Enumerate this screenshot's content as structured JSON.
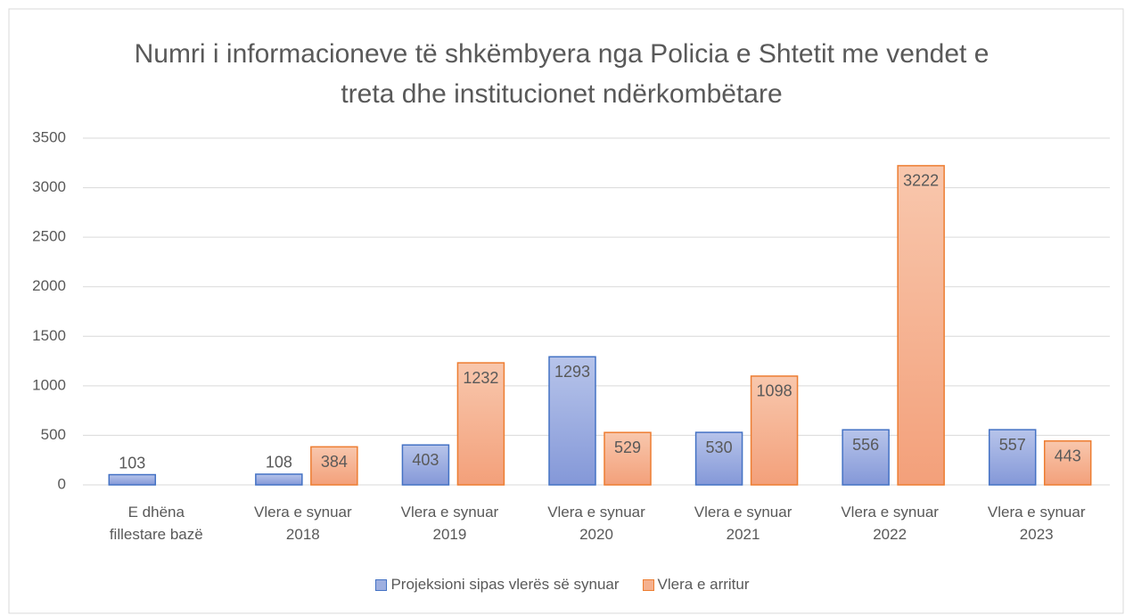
{
  "chart_data": {
    "type": "bar",
    "title": "Numri i informacioneve të shkëmbyera nga Policia e Shtetit me vendet e treta dhe institucionet ndërkombëtare",
    "categories": [
      "E dhëna fillestare bazë",
      "Vlera e synuar 2018",
      "Vlera e synuar 2019",
      "Vlera e synuar 2020",
      "Vlera e synuar 2021",
      "Vlera e synuar 2022",
      "Vlera e synuar 2023"
    ],
    "series": [
      {
        "name": "Projeksioni sipas vlerës së synuar",
        "color": "#4472c4",
        "values": [
          103,
          108,
          403,
          1293,
          530,
          556,
          557
        ]
      },
      {
        "name": "Vlera e arritur",
        "color": "#ed7d31",
        "values": [
          null,
          384,
          1232,
          529,
          1098,
          3222,
          443
        ]
      }
    ],
    "ylim": [
      0,
      3500
    ],
    "yticks": [
      0,
      500,
      1000,
      1500,
      2000,
      2500,
      3000,
      3500
    ],
    "grid": true,
    "legend": "bottom"
  }
}
